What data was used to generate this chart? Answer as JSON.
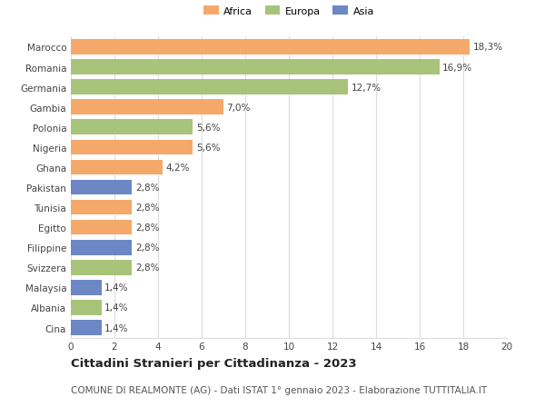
{
  "categories": [
    "Marocco",
    "Romania",
    "Germania",
    "Gambia",
    "Polonia",
    "Nigeria",
    "Ghana",
    "Pakistan",
    "Tunisia",
    "Egitto",
    "Filippine",
    "Svizzera",
    "Malaysia",
    "Albania",
    "Cina"
  ],
  "values": [
    18.3,
    16.9,
    12.7,
    7.0,
    5.6,
    5.6,
    4.2,
    2.8,
    2.8,
    2.8,
    2.8,
    2.8,
    1.4,
    1.4,
    1.4
  ],
  "labels": [
    "18,3%",
    "16,9%",
    "12,7%",
    "7,0%",
    "5,6%",
    "5,6%",
    "4,2%",
    "2,8%",
    "2,8%",
    "2,8%",
    "2,8%",
    "2,8%",
    "1,4%",
    "1,4%",
    "1,4%"
  ],
  "continents": [
    "Africa",
    "Europa",
    "Europa",
    "Africa",
    "Europa",
    "Africa",
    "Africa",
    "Asia",
    "Africa",
    "Africa",
    "Asia",
    "Europa",
    "Asia",
    "Europa",
    "Asia"
  ],
  "colors": {
    "Africa": "#F4A96A",
    "Europa": "#A8C47A",
    "Asia": "#6B87C4"
  },
  "legend_labels": [
    "Africa",
    "Europa",
    "Asia"
  ],
  "legend_colors": [
    "#F4A96A",
    "#A8C47A",
    "#6B87C4"
  ],
  "xlim": [
    0,
    20
  ],
  "xticks": [
    0,
    2,
    4,
    6,
    8,
    10,
    12,
    14,
    16,
    18,
    20
  ],
  "title": "Cittadini Stranieri per Cittadinanza - 2023",
  "subtitle": "COMUNE DI REALMONTE (AG) - Dati ISTAT 1° gennaio 2023 - Elaborazione TUTTITALIA.IT",
  "background_color": "#ffffff",
  "grid_color": "#dddddd",
  "bar_height": 0.75,
  "label_fontsize": 7.5,
  "tick_fontsize": 7.5,
  "title_fontsize": 9.5,
  "subtitle_fontsize": 7.5
}
